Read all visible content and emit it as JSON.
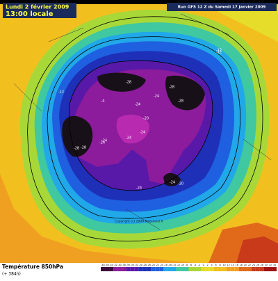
{
  "header": {
    "date": "Lundi 2 février 2009",
    "time": "13:00 locale",
    "run": "Run GFS 12 Z du Samedi 17 janvier 2009"
  },
  "map": {
    "contour_labels": [
      -28,
      -28,
      -28,
      -24,
      -28,
      -24,
      -12,
      -12,
      -4,
      -24,
      -24,
      -24,
      -28,
      -20,
      -24,
      -20,
      -24,
      -24,
      -12
    ],
    "copyright": "Copyright (c) 2009 Meteociel.fr"
  },
  "footer": {
    "title": "Température 850hPa",
    "lead": "(+ 384h)"
  },
  "legend": {
    "ticks": [
      -48,
      -46,
      -44,
      -42,
      -40,
      -38,
      -36,
      -34,
      -32,
      -30,
      -28,
      -26,
      -24,
      -22,
      -20,
      -18,
      -16,
      -14,
      -12,
      -10,
      -8,
      -6,
      -4,
      -2,
      0,
      2,
      4,
      6,
      8,
      10,
      12,
      14,
      16,
      18,
      20,
      22,
      24,
      26,
      28,
      30,
      32,
      34
    ]
  }
}
